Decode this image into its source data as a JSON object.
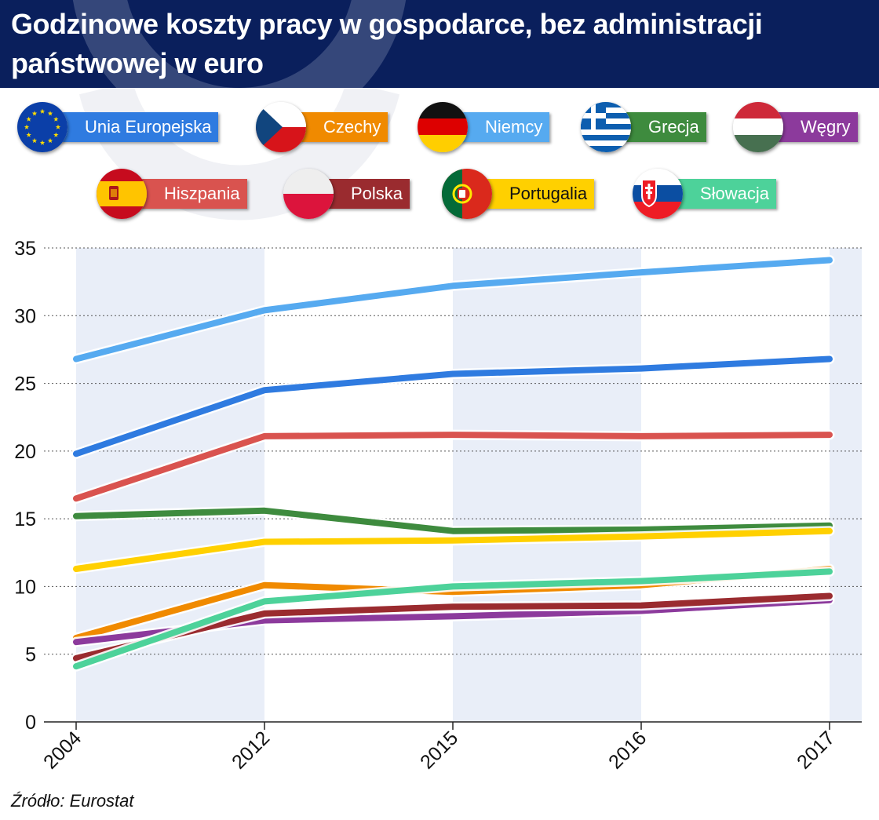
{
  "title": "Godzinowe koszty pracy w gospodarce, bez administracji państwowej w euro",
  "source": "Źródło: Eurostat",
  "legend": [
    {
      "label": "Unia Europejska",
      "color": "#2f7be0",
      "flag": "eu-flag-icon"
    },
    {
      "label": "Czechy",
      "color": "#f08a00",
      "flag": "czech-flag-icon"
    },
    {
      "label": "Niemcy",
      "color": "#56aaf0",
      "flag": "germany-flag-icon"
    },
    {
      "label": "Grecja",
      "color": "#3e8b3e",
      "flag": "greece-flag-icon"
    },
    {
      "label": "Węgry",
      "color": "#8c3a9c",
      "flag": "hungary-flag-icon"
    },
    {
      "label": "Hiszpania",
      "color": "#d9534f",
      "flag": "spain-flag-icon"
    },
    {
      "label": "Polska",
      "color": "#9a2b2f",
      "flag": "poland-flag-icon"
    },
    {
      "label": "Portugalia",
      "color": "#ffd000",
      "flag": "portugal-flag-icon"
    },
    {
      "label": "Słowacja",
      "color": "#4dd29a",
      "flag": "slovakia-flag-icon"
    }
  ],
  "chart_data": {
    "type": "line",
    "title": "Godzinowe koszty pracy w gospodarce, bez administracji państwowej w euro",
    "x": [
      "2004",
      "2012",
      "2015",
      "2016",
      "2017"
    ],
    "ylim": [
      0,
      35
    ],
    "yticks": [
      0,
      5,
      10,
      15,
      20,
      25,
      30,
      35
    ],
    "grid": "horizontal dotted",
    "legend_position": "top",
    "series": [
      {
        "name": "Niemcy",
        "color": "#56aaf0",
        "values": [
          26.8,
          30.4,
          32.2,
          33.2,
          34.1
        ]
      },
      {
        "name": "Unia Europejska",
        "color": "#2f7be0",
        "values": [
          19.8,
          24.5,
          25.7,
          26.1,
          26.8
        ]
      },
      {
        "name": "Hiszpania",
        "color": "#d9534f",
        "values": [
          16.5,
          21.1,
          21.2,
          21.1,
          21.2
        ]
      },
      {
        "name": "Grecja",
        "color": "#3e8b3e",
        "values": [
          15.2,
          15.6,
          14.1,
          14.2,
          14.5
        ]
      },
      {
        "name": "Portugalia",
        "color": "#ffd000",
        "values": [
          11.3,
          13.3,
          13.4,
          13.7,
          14.1
        ]
      },
      {
        "name": "Czechy",
        "color": "#f08a00",
        "values": [
          6.2,
          10.1,
          9.6,
          10.1,
          11.3
        ]
      },
      {
        "name": "Węgry",
        "color": "#8c3a9c",
        "values": [
          5.9,
          7.5,
          7.8,
          8.2,
          9.0
        ]
      },
      {
        "name": "Polska",
        "color": "#9a2b2f",
        "values": [
          4.7,
          8.0,
          8.5,
          8.6,
          9.3
        ]
      },
      {
        "name": "Słowacja",
        "color": "#4dd29a",
        "values": [
          4.1,
          8.9,
          10.0,
          10.4,
          11.1
        ]
      }
    ]
  }
}
